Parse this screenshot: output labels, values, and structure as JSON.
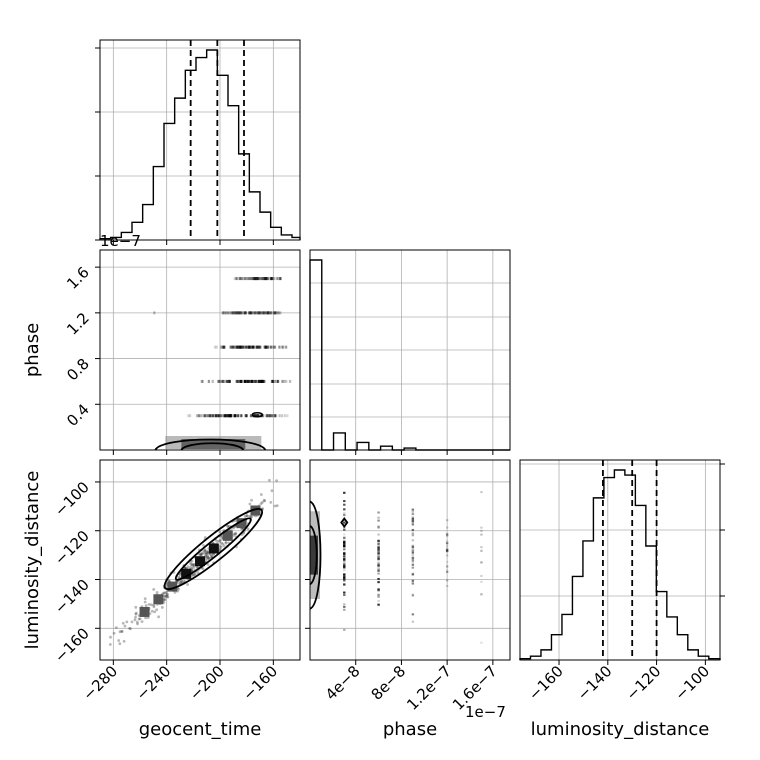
{
  "figure": {
    "x_label_geocent": "geocent_time",
    "x_label_phase": "phase",
    "x_label_distance": "luminosity_distance",
    "y_label_phase": "phase",
    "y_label_distance": "luminosity_distance",
    "phase_offset": "1e−7"
  },
  "chart_data": [
    {
      "type": "bar",
      "panel": "geocent_time-histogram",
      "xlim": [
        -290,
        -140
      ],
      "xticks": [
        -280,
        -240,
        -200,
        -160
      ],
      "bin_edges": [
        -290,
        -282,
        -274,
        -266,
        -258,
        -250,
        -242,
        -234,
        -226,
        -218,
        -210,
        -202,
        -194,
        -186,
        -178,
        -170,
        -162,
        -154,
        -146,
        -140
      ],
      "counts": [
        0.5,
        1,
        3,
        7,
        14,
        29,
        46,
        56,
        67,
        72,
        75,
        65,
        53,
        34,
        19,
        11,
        5,
        2,
        1
      ],
      "quantiles": [
        -222,
        -202,
        -182
      ]
    },
    {
      "type": "scatter",
      "panel": "geocent_time-vs-phase",
      "xlim": [
        -290,
        -140
      ],
      "ylim": [
        0,
        1.75e-07
      ],
      "xticks": [
        -280,
        -240,
        -200,
        -160
      ],
      "yticks": [
        0.4,
        0.8,
        1.2,
        1.6
      ],
      "ytick_labels": [
        "0.4",
        "0.8",
        "1.2",
        "1.6"
      ],
      "bands": [
        {
          "y": 3e-08,
          "x_range": [
            -225,
            -150
          ]
        },
        {
          "y": 6e-08,
          "x_range": [
            -215,
            -148
          ]
        },
        {
          "y": 9e-08,
          "x_range": [
            -205,
            -150
          ]
        },
        {
          "y": 1.2e-07,
          "x_range": [
            -200,
            -155
          ]
        },
        {
          "y": 1.5e-07,
          "x_range": [
            -190,
            -155
          ]
        }
      ],
      "contour_center": [
        -205,
        4e-09
      ]
    },
    {
      "type": "bar",
      "panel": "phase-histogram",
      "xlim": [
        0,
        1.75e-07
      ],
      "xticks": [
        0.4,
        0.8,
        1.2,
        1.6
      ],
      "xtick_labels": [
        "0.4",
        "0.8",
        "1.2",
        "1.6"
      ],
      "counts": [
        100,
        0,
        9,
        0,
        4,
        0,
        2,
        0,
        1,
        0,
        0,
        0,
        0,
        0,
        0,
        0,
        0
      ]
    },
    {
      "type": "scatter",
      "panel": "geocent_time-vs-luminosity_distance",
      "xlim": [
        -290,
        -140
      ],
      "ylim": [
        -173,
        -91
      ],
      "xticks": [
        -280,
        -240,
        -200,
        -160
      ],
      "yticks": [
        -100,
        -120,
        -140,
        -160
      ],
      "trend": {
        "x": [
          -280,
          -150
        ],
        "y": [
          -165,
          -100
        ]
      }
    },
    {
      "type": "scatter",
      "panel": "phase-vs-luminosity_distance",
      "xlim": [
        0,
        1.75e-07
      ],
      "ylim": [
        -173,
        -91
      ],
      "xticks": [
        0.4,
        0.8,
        1.2,
        1.6
      ],
      "yticks": [
        -100,
        -120,
        -140,
        -160
      ]
    },
    {
      "type": "bar",
      "panel": "luminosity_distance-histogram",
      "xlim": [
        -176,
        -94
      ],
      "xticks": [
        -160,
        -140,
        -120,
        -100
      ],
      "bin_edges": [
        -176,
        -171.7,
        -167.4,
        -163.1,
        -158.8,
        -154.5,
        -150.2,
        -145.9,
        -141.6,
        -137.3,
        -133,
        -128.7,
        -124.4,
        -120.1,
        -115.8,
        -111.5,
        -107.2,
        -102.9,
        -98.6,
        -94
      ],
      "counts": [
        0.5,
        1.5,
        4,
        10,
        18,
        33,
        47,
        64,
        72,
        75,
        73,
        61,
        45,
        27,
        17,
        10,
        4,
        1.5,
        0.5
      ],
      "quantiles": [
        -142,
        -130,
        -120
      ]
    }
  ]
}
